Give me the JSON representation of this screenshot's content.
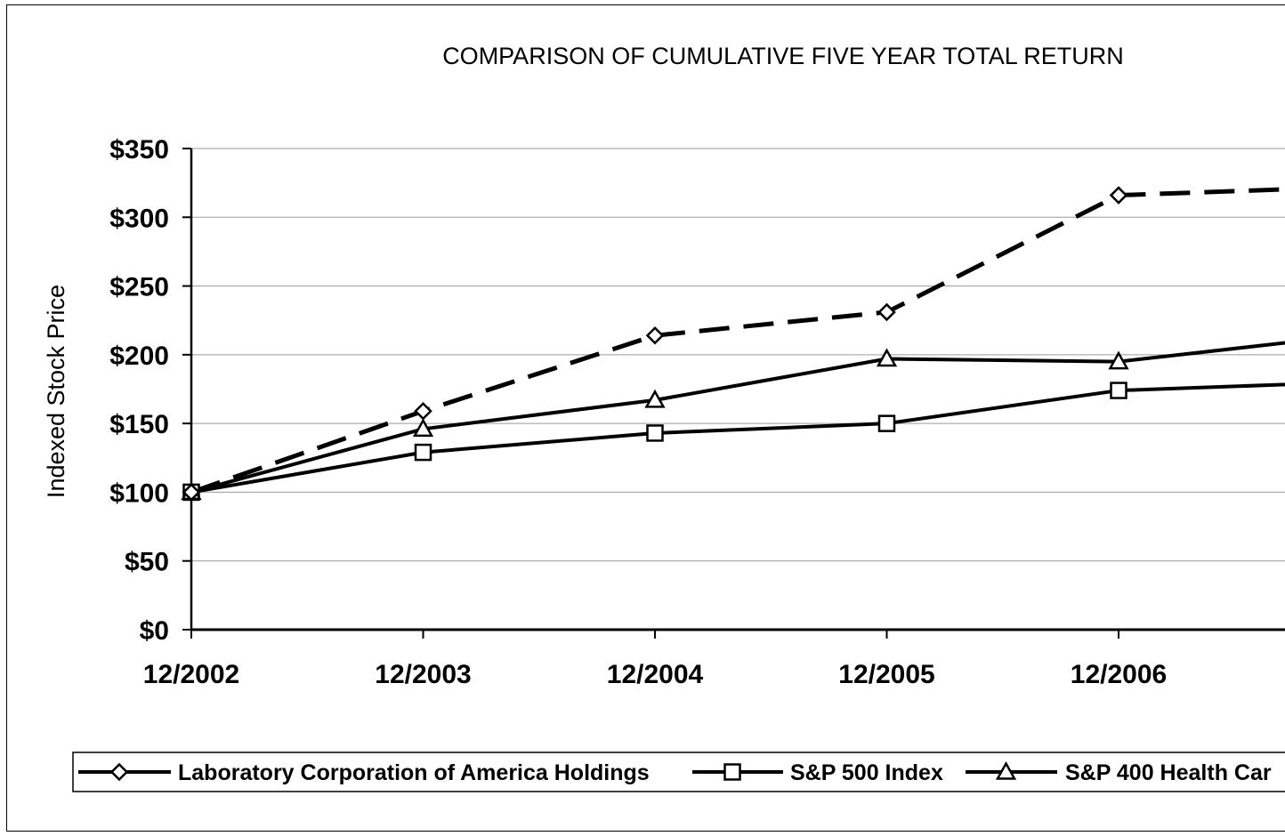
{
  "chart_data": {
    "type": "line",
    "title": "COMPARISON OF CUMULATIVE FIVE YEAR TOTAL RETURN",
    "xlabel": "",
    "ylabel": "Indexed Stock Price",
    "categories": [
      "12/2002",
      "12/2003",
      "12/2004",
      "12/2005",
      "12/2006"
    ],
    "ylim": [
      0,
      350
    ],
    "yticks": [
      "$0",
      "$50",
      "$100",
      "$150",
      "$200",
      "$250",
      "$300",
      "$350"
    ],
    "grid": true,
    "legend": "bottom",
    "series": [
      {
        "name": "Laboratory Corporation of America Holdings",
        "marker": "diamond",
        "style": "dashed",
        "values": [
          100,
          159,
          214,
          231,
          316
        ],
        "trailing_value": 322
      },
      {
        "name": "S&P 500 Index",
        "marker": "square",
        "style": "solid",
        "values": [
          100,
          129,
          143,
          150,
          174
        ],
        "trailing_value": 180
      },
      {
        "name": "S&P 400 Health Car",
        "marker": "triangle",
        "style": "solid",
        "values": [
          100,
          146,
          167,
          197,
          195
        ],
        "trailing_value": 214
      }
    ]
  }
}
